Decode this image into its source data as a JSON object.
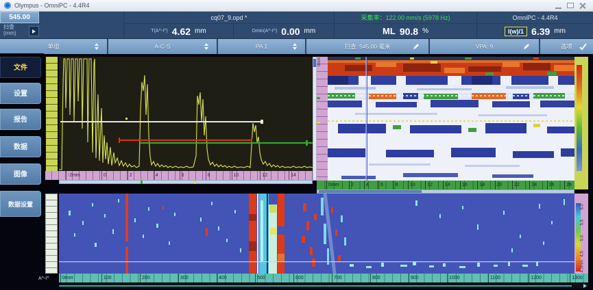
{
  "window": {
    "title": "Olympus - OmniPC - 4.4R4"
  },
  "header": {
    "position_box": {
      "value": "545.00",
      "label": "扫查",
      "unit": "(mm)"
    },
    "file_name": "cq07_9.opd *",
    "acquisition_rate": "采集率：122.00 mm/s (5978 Hz)",
    "app_version": "OmniPC - 4.4R4",
    "readings": {
      "r1": {
        "label": "T(A^-I^)",
        "value": "4.62",
        "unit": "mm"
      },
      "r2": {
        "label": "Dmin(A^-I^)",
        "value": "0.00",
        "unit": "mm"
      },
      "r3": {
        "label": "ML",
        "value": "90.8",
        "unit": "%"
      },
      "r4": {
        "label": "I(w)/1",
        "value": "6.39",
        "unit": "mm"
      }
    }
  },
  "toolbar": {
    "group": "单组",
    "layout": "A-C-S",
    "probe": "PA 1",
    "scan_position": "扫查: 545.00 毫米",
    "vpa": "VPA: 9",
    "options": "选项"
  },
  "sidebar": {
    "tabs": [
      {
        "label": "文件",
        "active": true
      },
      {
        "label": "设置",
        "active": false
      },
      {
        "label": "报告",
        "active": false
      },
      {
        "label": "数据",
        "active": false
      },
      {
        "label": "图像",
        "active": false
      },
      {
        "label": "数据设置",
        "active": false
      }
    ]
  },
  "ascan": {
    "x_ticks": [
      "-2mm",
      "0",
      "2",
      "4",
      "6",
      "8",
      "10",
      "12",
      "14"
    ],
    "gate_colors": {
      "white": "#e8e8e8",
      "red": "#d83018",
      "green": "#30a830"
    },
    "waveform_color": "#dce455"
  },
  "bscan": {
    "x_ticks": [
      "0mm",
      "2",
      "4",
      "6",
      "8",
      "10",
      "12",
      "14",
      "16",
      "18",
      "20",
      "22",
      "24",
      "26",
      "28"
    ],
    "y_axis_label": "0mm"
  },
  "cscan": {
    "x_ticks": [
      "0mm",
      "100",
      "200",
      "300",
      "400",
      "500",
      "600",
      "700",
      "800",
      "900",
      "1000",
      "1100",
      "1200",
      "1300"
    ],
    "depth_ticks": [
      "6.0",
      "5.5",
      "5.0",
      "4.5",
      "4.0mm"
    ],
    "axis_label": "A^-I^"
  }
}
